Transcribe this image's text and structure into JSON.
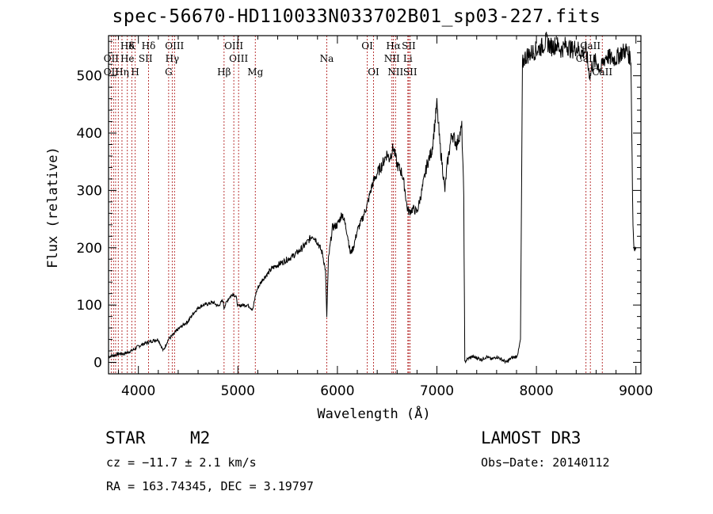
{
  "chart_data": {
    "type": "line",
    "title": "spec-56670-HD110033N033702B01_sp03-227.fits",
    "xlabel": "Wavelength (Å)",
    "ylabel": "Flux (relative)",
    "xlim": [
      3700,
      9050
    ],
    "ylim": [
      -20,
      570
    ],
    "x_ticks": [
      4000,
      5000,
      6000,
      7000,
      8000,
      9000
    ],
    "y_ticks": [
      0,
      100,
      200,
      300,
      400,
      500
    ],
    "grid": false,
    "series": [
      {
        "name": "spectrum",
        "x": [
          3700,
          3750,
          3800,
          3850,
          3900,
          3950,
          4000,
          4050,
          4100,
          4150,
          4200,
          4250,
          4300,
          4350,
          4400,
          4450,
          4500,
          4550,
          4600,
          4650,
          4700,
          4750,
          4800,
          4850,
          4860,
          4900,
          4950,
          4980,
          5000,
          5050,
          5100,
          5150,
          5180,
          5200,
          5250,
          5300,
          5350,
          5400,
          5450,
          5500,
          5550,
          5600,
          5650,
          5700,
          5750,
          5800,
          5850,
          5880,
          5893,
          5910,
          5950,
          6000,
          6050,
          6100,
          6130,
          6160,
          6200,
          6250,
          6300,
          6350,
          6400,
          6450,
          6500,
          6520,
          6563,
          6600,
          6650,
          6680,
          6700,
          6720,
          6760,
          6800,
          6850,
          6900,
          6950,
          7000,
          7030,
          7050,
          7080,
          7100,
          7150,
          7200,
          7250,
          7270,
          7280,
          7300,
          7350,
          7400,
          7450,
          7500,
          7550,
          7600,
          7650,
          7700,
          7750,
          7800,
          7820,
          7840,
          7860,
          7880,
          7900,
          7950,
          8000,
          8050,
          8100,
          8150,
          8200,
          8250,
          8300,
          8350,
          8400,
          8450,
          8500,
          8520,
          8542,
          8560,
          8600,
          8650,
          8662,
          8700,
          8750,
          8800,
          8850,
          8900,
          8950,
          8970,
          8980,
          9000
        ],
        "values": [
          10,
          12,
          15,
          15,
          18,
          22,
          28,
          32,
          35,
          38,
          40,
          20,
          40,
          48,
          58,
          65,
          72,
          85,
          95,
          100,
          102,
          105,
          98,
          108,
          95,
          110,
          120,
          115,
          98,
          100,
          100,
          92,
          120,
          130,
          145,
          155,
          165,
          170,
          175,
          180,
          185,
          192,
          200,
          210,
          222,
          210,
          190,
          160,
          80,
          180,
          235,
          240,
          260,
          225,
          190,
          200,
          230,
          250,
          275,
          310,
          330,
          345,
          365,
          355,
          375,
          345,
          330,
          300,
          270,
          262,
          268,
          262,
          300,
          345,
          370,
          450,
          380,
          350,
          300,
          340,
          400,
          380,
          410,
          290,
          0,
          5,
          10,
          8,
          5,
          10,
          5,
          10,
          5,
          0,
          8,
          10,
          20,
          40,
          520,
          530,
          535,
          540,
          545,
          550,
          560,
          550,
          555,
          545,
          555,
          545,
          550,
          540,
          545,
          515,
          500,
          520,
          525,
          510,
          520,
          535,
          530,
          530,
          540,
          545,
          530,
          240,
          200,
          200
        ]
      }
    ],
    "line_labels": [
      {
        "name": "Hδ",
        "wavelength": 3889,
        "row": 0
      },
      {
        "name": "OII",
        "wavelength": 3727,
        "row": 1
      },
      {
        "name": "OII",
        "wavelength": 3727,
        "row": 2
      },
      {
        "name": "He",
        "wavelength": 3889,
        "row": 1
      },
      {
        "name": "Hη",
        "wavelength": 3835,
        "row": 2
      },
      {
        "name": "K",
        "wavelength": 3934,
        "row": 0
      },
      {
        "name": "SII",
        "wavelength": 4072,
        "row": 1
      },
      {
        "name": "H",
        "wavelength": 3968,
        "row": 2
      },
      {
        "name": "Hδ",
        "wavelength": 4102,
        "row": 0
      },
      {
        "name": "OIII",
        "wavelength": 4363,
        "row": 0
      },
      {
        "name": "Hγ",
        "wavelength": 4340,
        "row": 1
      },
      {
        "name": "G",
        "wavelength": 4304,
        "row": 2
      },
      {
        "name": "OIII",
        "wavelength": 4959,
        "row": 0
      },
      {
        "name": "OIII",
        "wavelength": 5007,
        "row": 1
      },
      {
        "name": "Hβ",
        "wavelength": 4861,
        "row": 2
      },
      {
        "name": "Mg",
        "wavelength": 5175,
        "row": 2
      },
      {
        "name": "Na",
        "wavelength": 5893,
        "row": 1
      },
      {
        "name": "OI",
        "wavelength": 6300,
        "row": 0
      },
      {
        "name": "OI",
        "wavelength": 6363,
        "row": 2
      },
      {
        "name": "Hα",
        "wavelength": 6563,
        "row": 0
      },
      {
        "name": "SII",
        "wavelength": 6717,
        "row": 0
      },
      {
        "name": "NII",
        "wavelength": 6548,
        "row": 1
      },
      {
        "name": "Li",
        "wavelength": 6708,
        "row": 1
      },
      {
        "name": "NII",
        "wavelength": 6584,
        "row": 2
      },
      {
        "name": "SII",
        "wavelength": 6731,
        "row": 2
      },
      {
        "name": "CaII",
        "wavelength": 8542,
        "row": 0
      },
      {
        "name": "CaII",
        "wavelength": 8498,
        "row": 1
      },
      {
        "name": "CaII",
        "wavelength": 8662,
        "row": 2
      }
    ],
    "line_positions": [
      3727,
      3750,
      3771,
      3798,
      3835,
      3889,
      3934,
      3968,
      4102,
      4304,
      4340,
      4363,
      4861,
      4959,
      5007,
      5175,
      5893,
      6300,
      6363,
      6548,
      6563,
      6584,
      6708,
      6717,
      6731,
      8498,
      8542,
      8662
    ]
  },
  "footer": {
    "class_label": "STAR",
    "subclass": "M2",
    "survey": "LAMOST DR3",
    "redshift": "cz = −11.7 ± 2.1 km/s",
    "obs_date": "Obs−Date: 20140112",
    "coords": "RA = 163.74345, DEC =    3.19797"
  },
  "colors": {
    "line_markers": "#b22222",
    "spectrum": "#000000",
    "axes": "#000000"
  }
}
